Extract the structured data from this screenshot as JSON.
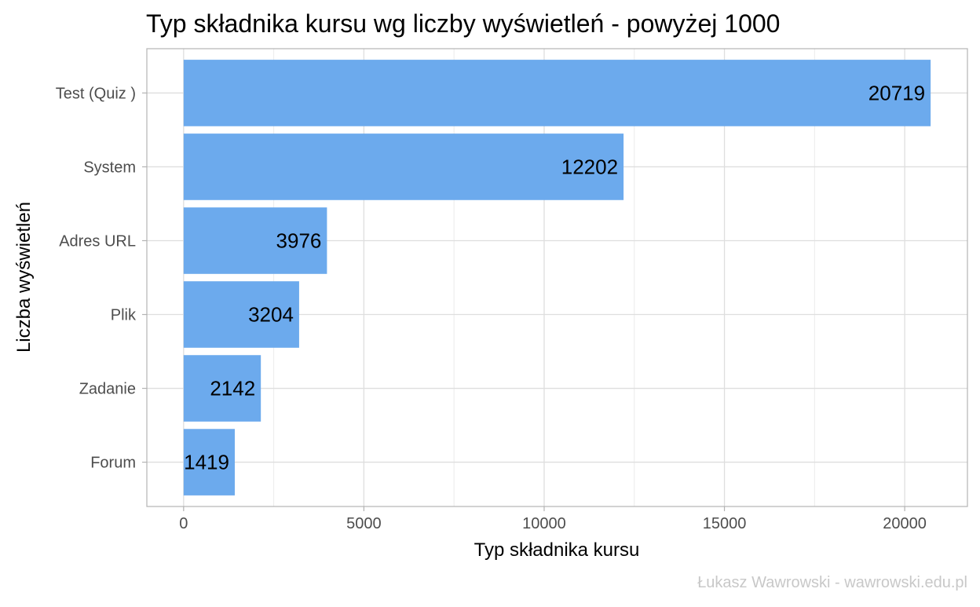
{
  "chart_data": {
    "type": "bar",
    "orientation": "horizontal",
    "title": "Typ składnika kursu wg liczby wyświetleń - powyżej 1000",
    "xlabel": "Typ składnika kursu",
    "ylabel": "Liczba wyświetleń",
    "categories": [
      "Test (Quiz )",
      "System",
      "Adres URL",
      "Plik",
      "Zadanie",
      "Forum"
    ],
    "values": [
      20719,
      12202,
      3976,
      3204,
      2142,
      1419
    ],
    "data_labels": [
      "20719",
      "12202",
      "3976",
      "3204",
      "2142",
      "1419"
    ],
    "xlim": [
      -1020,
      21740
    ],
    "xticks": [
      0,
      5000,
      10000,
      15000,
      20000
    ],
    "xtick_labels": [
      "0",
      "5000",
      "10000",
      "15000",
      "20000"
    ],
    "grid": true,
    "bar_color": "#6caaed",
    "caption": "Łukasz Wawrowski - wawrowski.edu.pl"
  }
}
